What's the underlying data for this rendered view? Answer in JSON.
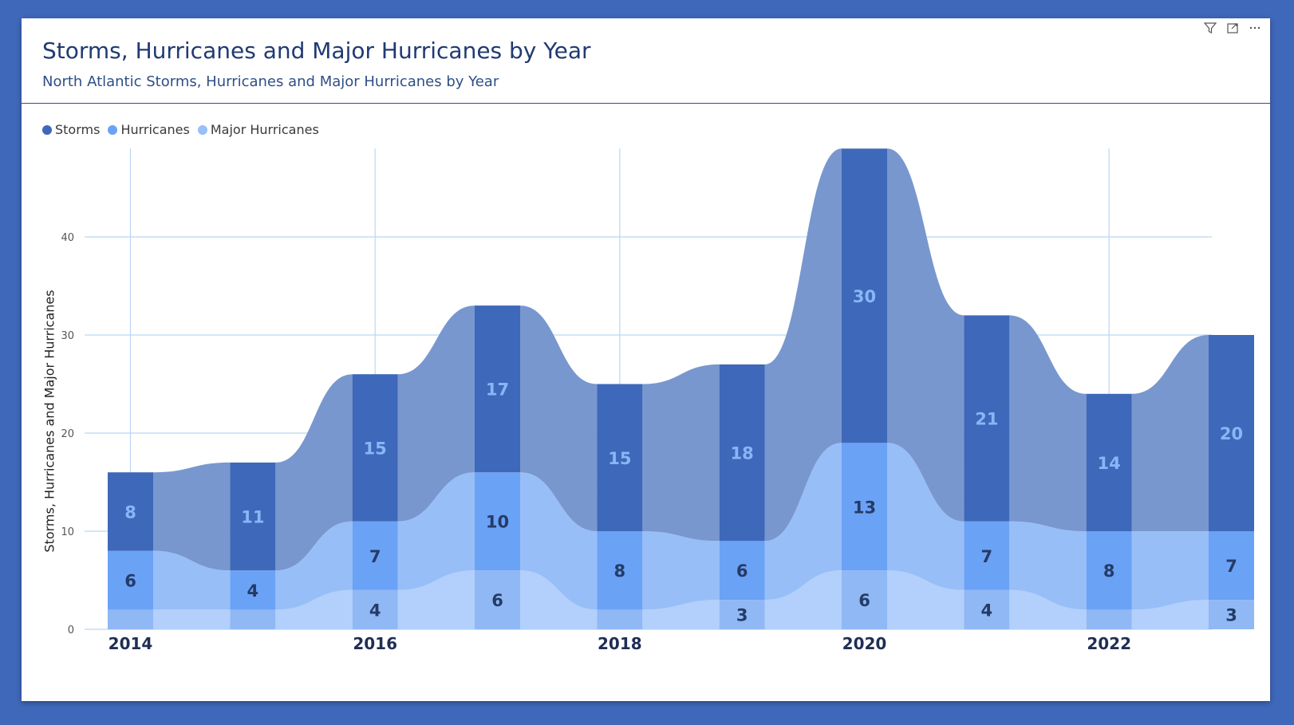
{
  "header": {
    "title": "Storms, Hurricanes and Major Hurricanes by Year",
    "subtitle": "North Atlantic Storms, Hurricanes and Major Hurricanes by Year"
  },
  "toolbar": {
    "filter_icon": "filter-icon",
    "focus_icon": "focus-mode-icon",
    "more_icon": "more-options-icon"
  },
  "legend": [
    {
      "label": "Storms",
      "color": "#3e68b9"
    },
    {
      "label": "Hurricanes",
      "color": "#6aa2f6"
    },
    {
      "label": "Major Hurricanes",
      "color": "#97bff8"
    }
  ],
  "colors": {
    "storms": "#3e68b9",
    "storms_ribbon": "#7897cf",
    "hurricanes": "#6aa2f6",
    "hurricanes_ribbon": "#98bef8",
    "major": "#8fb8f5",
    "major_ribbon": "#b2d0fb",
    "grid": "#b9d6f2",
    "label_dark": "#253b66",
    "label_light": "#8ab5f6"
  },
  "chart_data": {
    "type": "bar",
    "stacked": true,
    "style": "ribbon",
    "x": [
      2014,
      2015,
      2016,
      2017,
      2018,
      2019,
      2020,
      2021,
      2022,
      2023
    ],
    "x_tick_labels": [
      "2014",
      "2016",
      "2018",
      "2020",
      "2022"
    ],
    "series": [
      {
        "name": "Major Hurricanes",
        "values": [
          2,
          2,
          4,
          6,
          2,
          3,
          6,
          4,
          2,
          3
        ]
      },
      {
        "name": "Hurricanes",
        "values": [
          6,
          4,
          7,
          10,
          8,
          6,
          13,
          7,
          8,
          7
        ]
      },
      {
        "name": "Storms",
        "values": [
          8,
          11,
          15,
          17,
          15,
          18,
          30,
          21,
          14,
          20
        ]
      }
    ],
    "data_labels_shown": {
      "Major Hurricanes": [
        false,
        false,
        true,
        true,
        false,
        true,
        true,
        true,
        false,
        true
      ],
      "Hurricanes": [
        true,
        true,
        true,
        true,
        true,
        true,
        true,
        true,
        true,
        true
      ],
      "Storms": [
        true,
        true,
        true,
        true,
        true,
        true,
        true,
        true,
        true,
        true
      ]
    },
    "ylabel": "Storms, Hurricanes and Major Hurricanes",
    "y_ticks": [
      0,
      10,
      20,
      30,
      40
    ],
    "ylim": [
      0,
      49
    ],
    "grid": true,
    "legend_position": "top-left"
  }
}
